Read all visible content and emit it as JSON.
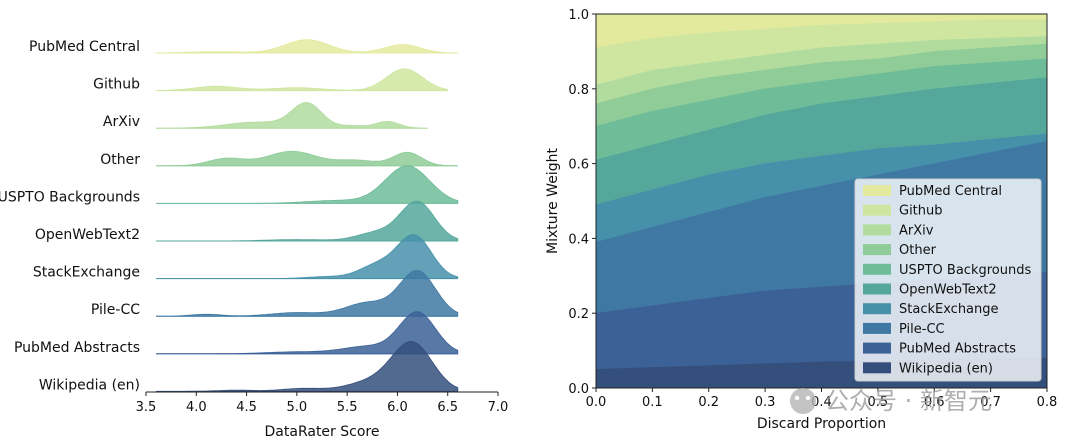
{
  "colors": {
    "PubMed Central": "#e3ea9e",
    "Github": "#cfe6a0",
    "ArXiv": "#b2dc9e",
    "Other": "#8fcc98",
    "USPTO Backgrounds": "#6fbc99",
    "OpenWebText2": "#55a79c",
    "StackExchange": "#4690aa",
    "Pile-CC": "#3f79a3",
    "PubMed Abstracts": "#3b6196",
    "Wikipedia (en)": "#344f7c"
  },
  "chart_data": [
    {
      "type": "ridgeline",
      "xlabel": "DataRater Score",
      "xlim": [
        3.5,
        7.0
      ],
      "xticks": [
        "3.5",
        "4.0",
        "4.5",
        "5.0",
        "5.5",
        "6.0",
        "6.5",
        "7.0"
      ],
      "series": [
        {
          "name": "PubMed Central",
          "peaks": [
            [
              5.1,
              0.55,
              0.22
            ],
            [
              6.05,
              0.35,
              0.18
            ],
            [
              4.2,
              0.06,
              0.25
            ]
          ],
          "range": [
            3.6,
            6.6
          ]
        },
        {
          "name": "Github",
          "peaks": [
            [
              6.07,
              0.9,
              0.18
            ],
            [
              4.2,
              0.18,
              0.22
            ],
            [
              5.0,
              0.12,
              0.25
            ]
          ],
          "range": [
            3.6,
            6.5
          ]
        },
        {
          "name": "ArXiv",
          "peaks": [
            [
              5.1,
              1.0,
              0.15
            ],
            [
              4.6,
              0.25,
              0.3
            ],
            [
              5.9,
              0.28,
              0.12
            ],
            [
              5.55,
              0.1,
              0.12
            ]
          ],
          "range": [
            3.6,
            6.3
          ]
        },
        {
          "name": "Other",
          "peaks": [
            [
              4.95,
              0.6,
              0.25
            ],
            [
              6.1,
              0.55,
              0.14
            ],
            [
              4.3,
              0.3,
              0.18
            ],
            [
              5.6,
              0.22,
              0.2
            ]
          ],
          "range": [
            3.6,
            6.6
          ]
        },
        {
          "name": "USPTO Backgrounds",
          "peaks": [
            [
              6.1,
              1.55,
              0.22
            ],
            [
              5.4,
              0.12,
              0.3
            ]
          ],
          "range": [
            3.6,
            6.6
          ]
        },
        {
          "name": "OpenWebText2",
          "peaks": [
            [
              6.2,
              1.6,
              0.17
            ],
            [
              5.8,
              0.35,
              0.2
            ],
            [
              5.0,
              0.06,
              0.3
            ]
          ],
          "range": [
            3.6,
            6.6
          ]
        },
        {
          "name": "StackExchange",
          "peaks": [
            [
              6.17,
              1.75,
              0.17
            ],
            [
              5.8,
              0.55,
              0.18
            ],
            [
              5.3,
              0.08,
              0.2
            ]
          ],
          "range": [
            3.6,
            6.6
          ]
        },
        {
          "name": "Pile-CC",
          "peaks": [
            [
              6.2,
              1.85,
              0.18
            ],
            [
              5.7,
              0.55,
              0.22
            ],
            [
              5.0,
              0.15,
              0.25
            ],
            [
              4.1,
              0.08,
              0.15
            ]
          ],
          "range": [
            3.6,
            6.6
          ]
        },
        {
          "name": "PubMed Abstracts",
          "peaks": [
            [
              6.2,
              1.7,
              0.18
            ],
            [
              5.7,
              0.3,
              0.25
            ],
            [
              5.0,
              0.08,
              0.3
            ]
          ],
          "range": [
            3.6,
            6.6
          ]
        },
        {
          "name": "Wikipedia (en)",
          "peaks": [
            [
              6.15,
              1.95,
              0.2
            ],
            [
              5.75,
              0.4,
              0.25
            ],
            [
              5.05,
              0.12,
              0.2
            ],
            [
              4.4,
              0.05,
              0.2
            ]
          ],
          "range": [
            3.6,
            6.6
          ]
        }
      ]
    },
    {
      "type": "area",
      "stacked": true,
      "xlabel": "Discard Proportion",
      "ylabel": "Mixture Weight",
      "xlim": [
        0.0,
        0.8
      ],
      "ylim": [
        0.0,
        1.0
      ],
      "xticks": [
        "0.0",
        "0.1",
        "0.2",
        "0.3",
        "0.4",
        "0.5",
        "0.6",
        "0.7",
        "0.8"
      ],
      "yticks": [
        "0.0",
        "0.2",
        "0.4",
        "0.6",
        "0.8",
        "1.0"
      ],
      "x": [
        0.0,
        0.1,
        0.2,
        0.3,
        0.4,
        0.5,
        0.6,
        0.7,
        0.8
      ],
      "cumulative_top": [
        {
          "name": "Wikipedia (en)",
          "values": [
            0.05,
            0.055,
            0.06,
            0.065,
            0.07,
            0.072,
            0.075,
            0.078,
            0.08
          ]
        },
        {
          "name": "PubMed Abstracts",
          "values": [
            0.2,
            0.22,
            0.24,
            0.26,
            0.27,
            0.28,
            0.29,
            0.3,
            0.31
          ]
        },
        {
          "name": "Pile-CC",
          "values": [
            0.39,
            0.43,
            0.47,
            0.51,
            0.54,
            0.57,
            0.6,
            0.63,
            0.66
          ]
        },
        {
          "name": "StackExchange",
          "values": [
            0.49,
            0.53,
            0.57,
            0.6,
            0.62,
            0.64,
            0.65,
            0.665,
            0.68
          ]
        },
        {
          "name": "OpenWebText2",
          "values": [
            0.61,
            0.65,
            0.69,
            0.73,
            0.76,
            0.78,
            0.8,
            0.815,
            0.83
          ]
        },
        {
          "name": "USPTO Backgrounds",
          "values": [
            0.7,
            0.74,
            0.77,
            0.8,
            0.82,
            0.84,
            0.86,
            0.87,
            0.88
          ]
        },
        {
          "name": "Other",
          "values": [
            0.76,
            0.8,
            0.83,
            0.85,
            0.87,
            0.88,
            0.9,
            0.91,
            0.92
          ]
        },
        {
          "name": "ArXiv",
          "values": [
            0.81,
            0.85,
            0.87,
            0.89,
            0.91,
            0.92,
            0.93,
            0.935,
            0.94
          ]
        },
        {
          "name": "Github",
          "values": [
            0.91,
            0.935,
            0.95,
            0.96,
            0.97,
            0.975,
            0.98,
            0.985,
            0.985
          ]
        },
        {
          "name": "PubMed Central",
          "values": [
            1.0,
            1.0,
            1.0,
            1.0,
            1.0,
            1.0,
            1.0,
            1.0,
            1.0
          ]
        }
      ],
      "legend": {
        "placement": "lower-right",
        "entries": [
          "PubMed Central",
          "Github",
          "ArXiv",
          "Other",
          "USPTO Backgrounds",
          "OpenWebText2",
          "StackExchange",
          "Pile-CC",
          "PubMed Abstracts",
          "Wikipedia (en)"
        ]
      }
    }
  ],
  "watermark": {
    "text": "公众号 · 新智元"
  }
}
